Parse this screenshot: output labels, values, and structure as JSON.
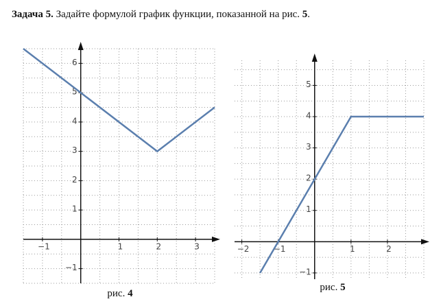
{
  "header": {
    "label": "Задача 5.",
    "text": "Задайте формулой график функции, показанной на рис.",
    "number": "5",
    "end": "."
  },
  "chart_data": [
    {
      "type": "line",
      "caption": {
        "text": "рис.",
        "number": "4"
      },
      "x": [
        -1.5,
        2,
        3.5
      ],
      "series": [
        {
          "color": "#5b7fae",
          "values": [
            6.5,
            3,
            4.5
          ]
        }
      ],
      "xlim": [
        -1.5,
        3.5
      ],
      "ylim": [
        -1.5,
        6.5
      ],
      "xticks": [
        {
          "value": -1,
          "label": "−1"
        },
        1,
        2,
        3
      ],
      "yticks": [
        {
          "value": -1,
          "label": "−1"
        },
        1,
        2,
        3,
        4,
        5,
        6
      ],
      "xgrid": [
        -1.5,
        -1,
        -0.5,
        0,
        0.5,
        1,
        1.5,
        2,
        2.5,
        3,
        3.5
      ],
      "ygrid": [
        -1.5,
        -1,
        -0.5,
        0,
        0.5,
        1,
        1.5,
        2,
        2.5,
        3,
        3.5,
        4,
        4.5,
        5,
        5.5,
        6,
        6.5
      ]
    },
    {
      "type": "line",
      "caption": {
        "text": "рис.",
        "number": "5"
      },
      "x": [
        -1.5,
        1,
        3
      ],
      "series": [
        {
          "color": "#5b7fae",
          "values": [
            -1,
            4,
            4
          ]
        }
      ],
      "xlim": [
        -2.2,
        3
      ],
      "ylim": [
        -1.2,
        5.8
      ],
      "xticks": [
        {
          "value": -2,
          "label": "−2"
        },
        {
          "value": -1,
          "label": "−1"
        },
        1,
        2
      ],
      "yticks": [
        {
          "value": -1,
          "label": "−1"
        },
        1,
        2,
        3,
        4,
        5
      ],
      "xgrid": [
        -2,
        -1.5,
        -1,
        -0.5,
        0,
        0.5,
        1,
        1.5,
        2,
        2.5,
        3
      ],
      "ygrid": [
        -1,
        -0.5,
        0,
        0.5,
        1,
        1.5,
        2,
        2.5,
        3,
        3.5,
        4,
        4.5,
        5,
        5.5
      ]
    }
  ]
}
